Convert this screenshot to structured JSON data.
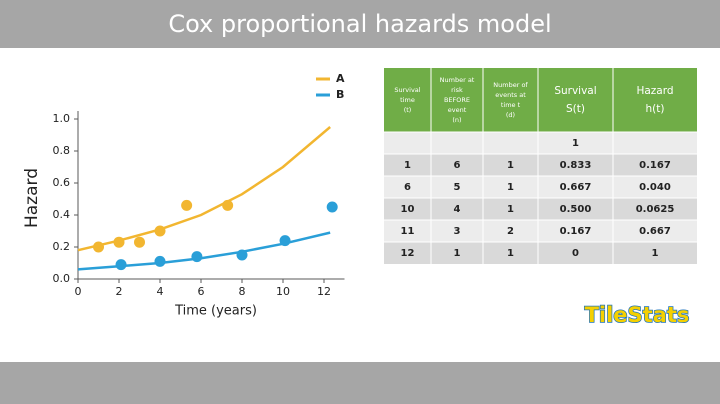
{
  "title": "Cox proportional hazards model",
  "chart_data": {
    "type": "scatter",
    "x_label": "Time (years)",
    "y_label": "Hazard",
    "xlim": [
      0,
      13
    ],
    "ylim": [
      0,
      1.05
    ],
    "xticks": [
      0,
      2,
      4,
      6,
      8,
      10,
      12
    ],
    "yticks": [
      {
        "value": 0,
        "label": "0.0"
      },
      0.2,
      0.4,
      0.6,
      0.8,
      {
        "value": 1,
        "label": "1.0"
      }
    ],
    "legend": "top-right",
    "series": [
      {
        "name": "A",
        "color": "#f2b630",
        "x": [
          1,
          2,
          3,
          4,
          5.3,
          7.3
        ],
        "values": [
          0.2,
          0.23,
          0.23,
          0.3,
          0.46,
          0.46
        ],
        "curve": {
          "x": [
            0,
            2,
            4,
            6,
            8,
            10,
            12.3
          ],
          "values": [
            0.18,
            0.24,
            0.31,
            0.4,
            0.53,
            0.7,
            0.95
          ]
        }
      },
      {
        "name": "B",
        "color": "#2a9fd8",
        "x": [
          2.1,
          4,
          5.8,
          8,
          10.1,
          12.4
        ],
        "values": [
          0.09,
          0.11,
          0.14,
          0.15,
          0.24,
          0.45
        ],
        "curve": {
          "x": [
            0,
            2,
            4,
            6,
            8,
            10,
            12.3
          ],
          "values": [
            0.06,
            0.08,
            0.1,
            0.13,
            0.17,
            0.22,
            0.29
          ]
        }
      }
    ]
  },
  "table": {
    "header": [
      [
        "Survival",
        "time",
        "(t)"
      ],
      [
        "Number at",
        "risk",
        "BEFORE",
        "event",
        "(n)"
      ],
      [
        "Number of",
        "events at",
        "time t",
        "(d)"
      ],
      [
        "Survival",
        "S(t)"
      ],
      [
        "Hazard",
        "h(t)"
      ]
    ],
    "rows": [
      [
        null,
        null,
        null,
        "1",
        null
      ],
      [
        "1",
        "6",
        "1",
        "0.833",
        "0.167"
      ],
      [
        "6",
        "5",
        "1",
        "0.667",
        "0.040"
      ],
      [
        "10",
        "4",
        "1",
        "0.500",
        "0.0625"
      ],
      [
        "11",
        "3",
        "2",
        "0.167",
        "0.667"
      ],
      [
        "12",
        "1",
        "1",
        "0",
        "1"
      ]
    ]
  },
  "logo": "TileStats"
}
